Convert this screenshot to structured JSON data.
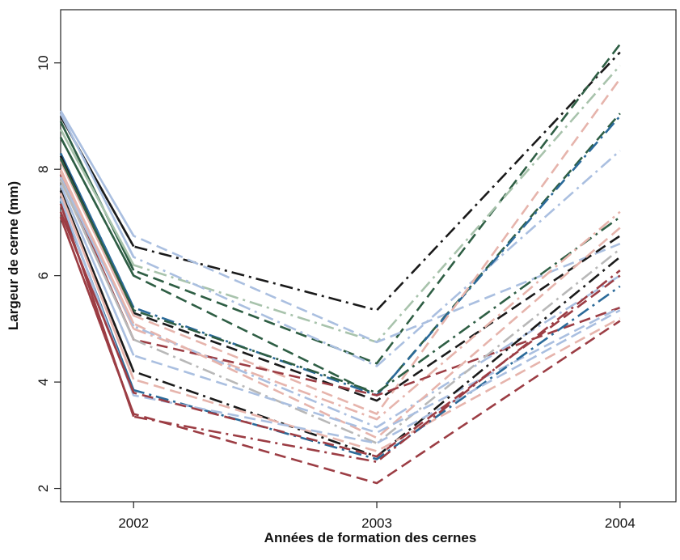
{
  "chart_data": {
    "type": "line",
    "xlabel": "Années de formation des cernes",
    "ylabel": "Largeur de cerne (mm)",
    "xlim": [
      2001.7,
      2004.23
    ],
    "ylim": [
      1.75,
      11.0
    ],
    "x_ticks": [
      2002,
      2003,
      2004
    ],
    "x_tick_labels": [
      "2002",
      "2003",
      "2004"
    ],
    "y_ticks": [
      2,
      4,
      6,
      8,
      10
    ],
    "y_tick_labels": [
      "2",
      "4",
      "6",
      "8",
      "10"
    ],
    "grid": false,
    "legend": "none",
    "x": [
      2001.7,
      2002,
      2003,
      2004
    ],
    "palette": {
      "black": "#1a1a1a",
      "dark_green": "#2e5e44",
      "blue": "#2b6a99",
      "light_green": "#a8c3ac",
      "light_blue": "#aabfe0",
      "pink": "#e6b4ac",
      "red": "#9c3d44",
      "grey": "#b8b8b8"
    },
    "series": [
      {
        "values": [
          9.0,
          6.55,
          5.35,
          10.2
        ],
        "color": "black",
        "dash": "dashdot"
      },
      {
        "values": [
          8.9,
          6.1,
          4.35,
          10.35
        ],
        "color": "dark_green",
        "dash": "dash"
      },
      {
        "values": [
          8.75,
          6.2,
          4.75,
          9.95
        ],
        "color": "light_green",
        "dash": "dashdot"
      },
      {
        "values": [
          9.1,
          6.75,
          4.75,
          6.6
        ],
        "color": "light_blue",
        "dash": "dash"
      },
      {
        "values": [
          9.05,
          6.35,
          4.3,
          8.35
        ],
        "color": "light_blue",
        "dash": "dashdot"
      },
      {
        "values": [
          8.6,
          6.0,
          3.75,
          9.05
        ],
        "color": "dark_green",
        "dash": "dash"
      },
      {
        "values": [
          8.3,
          5.4,
          3.75,
          9.0
        ],
        "color": "blue",
        "dash": "dashdot"
      },
      {
        "values": [
          8.25,
          5.3,
          3.65,
          6.75
        ],
        "color": "black",
        "dash": "dash"
      },
      {
        "values": [
          8.15,
          5.25,
          3.4,
          9.7
        ],
        "color": "pink",
        "dash": "dash"
      },
      {
        "values": [
          8.2,
          5.35,
          3.8,
          7.1
        ],
        "color": "dark_green",
        "dash": "dashdot"
      },
      {
        "values": [
          8.0,
          5.0,
          3.3,
          7.2
        ],
        "color": "pink",
        "dash": "dashdot"
      },
      {
        "values": [
          7.9,
          4.8,
          3.75,
          5.4
        ],
        "color": "red",
        "dash": "dash"
      },
      {
        "values": [
          7.85,
          5.05,
          3.15,
          6.0
        ],
        "color": "light_blue",
        "dash": "dashdot"
      },
      {
        "values": [
          7.95,
          5.1,
          2.95,
          6.9
        ],
        "color": "pink",
        "dash": "dash"
      },
      {
        "values": [
          7.8,
          4.8,
          2.85,
          6.5
        ],
        "color": "grey",
        "dash": "dashdot"
      },
      {
        "values": [
          7.7,
          4.5,
          3.05,
          5.4
        ],
        "color": "light_blue",
        "dash": "dash"
      },
      {
        "values": [
          7.6,
          4.2,
          2.6,
          6.35
        ],
        "color": "black",
        "dash": "dashdot"
      },
      {
        "values": [
          7.55,
          4.05,
          2.7,
          5.2
        ],
        "color": "pink",
        "dash": "dash"
      },
      {
        "values": [
          7.4,
          3.85,
          2.55,
          5.8
        ],
        "color": "blue",
        "dash": "dashdot"
      },
      {
        "values": [
          7.45,
          3.75,
          2.85,
          5.35
        ],
        "color": "light_blue",
        "dash": "dash"
      },
      {
        "values": [
          7.2,
          3.8,
          2.6,
          6.0
        ],
        "color": "red",
        "dash": "dash"
      },
      {
        "values": [
          7.35,
          3.35,
          2.5,
          6.1
        ],
        "color": "red",
        "dash": "dashdot"
      },
      {
        "values": [
          7.1,
          3.4,
          2.1,
          5.15
        ],
        "color": "red",
        "dash": "dash"
      }
    ]
  }
}
